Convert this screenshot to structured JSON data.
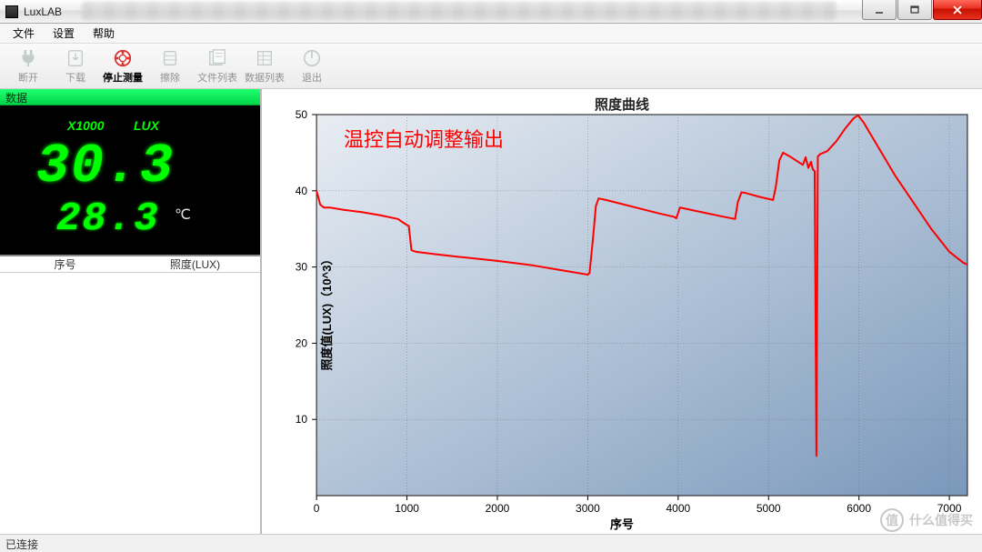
{
  "window": {
    "title": "LuxLAB",
    "buttons": {
      "min": "–",
      "max": "▭",
      "close": "X"
    }
  },
  "menu": {
    "file": "文件",
    "settings": "设置",
    "help": "帮助"
  },
  "toolbar": {
    "disconnect": "断开",
    "download": "下载",
    "stop_measure": "停止测量",
    "erase": "擦除",
    "file_list": "文件列表",
    "data_list": "数据列表",
    "exit": "退出"
  },
  "panel": {
    "header": "数据",
    "x1000": "X1000",
    "lux_label": "LUX",
    "reading": "30.3",
    "temperature": "28.3",
    "deg_unit": "℃",
    "col_index": "序号",
    "col_lux": "照度(LUX)"
  },
  "chart": {
    "title": "照度曲线",
    "ylabel": "照度值(LUX)（10^3）",
    "xlabel": "序号",
    "annotation": "温控自动调整输出",
    "annotation_color": "#ff0000",
    "type": "line",
    "xlim": [
      0,
      7200
    ],
    "ylim": [
      0,
      50
    ],
    "xticks": [
      0,
      1000,
      2000,
      3000,
      4000,
      5000,
      6000,
      7000
    ],
    "yticks": [
      10,
      20,
      30,
      40,
      50
    ],
    "grid_color": "#666666",
    "line_color": "#ff0000",
    "line_width": 2,
    "plot_bg_gradient": [
      "#e8edf3",
      "#7a98bb"
    ],
    "series": [
      [
        0,
        40
      ],
      [
        40,
        38.2
      ],
      [
        80,
        37.8
      ],
      [
        150,
        37.8
      ],
      [
        300,
        37.5
      ],
      [
        500,
        37.2
      ],
      [
        700,
        36.8
      ],
      [
        900,
        36.3
      ],
      [
        1000,
        35.5
      ],
      [
        1020,
        35.4
      ],
      [
        1050,
        32.2
      ],
      [
        1100,
        32.0
      ],
      [
        1300,
        31.7
      ],
      [
        1600,
        31.3
      ],
      [
        2000,
        30.8
      ],
      [
        2400,
        30.2
      ],
      [
        2700,
        29.6
      ],
      [
        2900,
        29.2
      ],
      [
        3000,
        29.0
      ],
      [
        3020,
        29.2
      ],
      [
        3060,
        34.0
      ],
      [
        3090,
        38.0
      ],
      [
        3120,
        39.0
      ],
      [
        3200,
        38.8
      ],
      [
        3400,
        38.2
      ],
      [
        3600,
        37.6
      ],
      [
        3800,
        37.0
      ],
      [
        3950,
        36.6
      ],
      [
        3980,
        36.4
      ],
      [
        4020,
        37.8
      ],
      [
        4100,
        37.6
      ],
      [
        4300,
        37.1
      ],
      [
        4500,
        36.6
      ],
      [
        4630,
        36.3
      ],
      [
        4660,
        38.5
      ],
      [
        4700,
        39.8
      ],
      [
        4750,
        39.7
      ],
      [
        4900,
        39.2
      ],
      [
        5050,
        38.8
      ],
      [
        5080,
        40.5
      ],
      [
        5120,
        44.0
      ],
      [
        5160,
        45.0
      ],
      [
        5250,
        44.4
      ],
      [
        5380,
        43.4
      ],
      [
        5410,
        44.4
      ],
      [
        5440,
        43.0
      ],
      [
        5470,
        43.8
      ],
      [
        5490,
        42.8
      ],
      [
        5510,
        42.6
      ],
      [
        5530,
        5.2
      ],
      [
        5545,
        44.5
      ],
      [
        5570,
        44.8
      ],
      [
        5650,
        45.2
      ],
      [
        5750,
        46.5
      ],
      [
        5850,
        48.2
      ],
      [
        5940,
        49.5
      ],
      [
        5990,
        49.9
      ],
      [
        6050,
        49.0
      ],
      [
        6200,
        46.0
      ],
      [
        6400,
        42.0
      ],
      [
        6600,
        38.5
      ],
      [
        6800,
        35.0
      ],
      [
        7000,
        32.0
      ],
      [
        7150,
        30.6
      ],
      [
        7200,
        30.3
      ]
    ]
  },
  "status": {
    "text": "已连接"
  },
  "watermark": {
    "text": "什么值得买",
    "badge": "值"
  }
}
